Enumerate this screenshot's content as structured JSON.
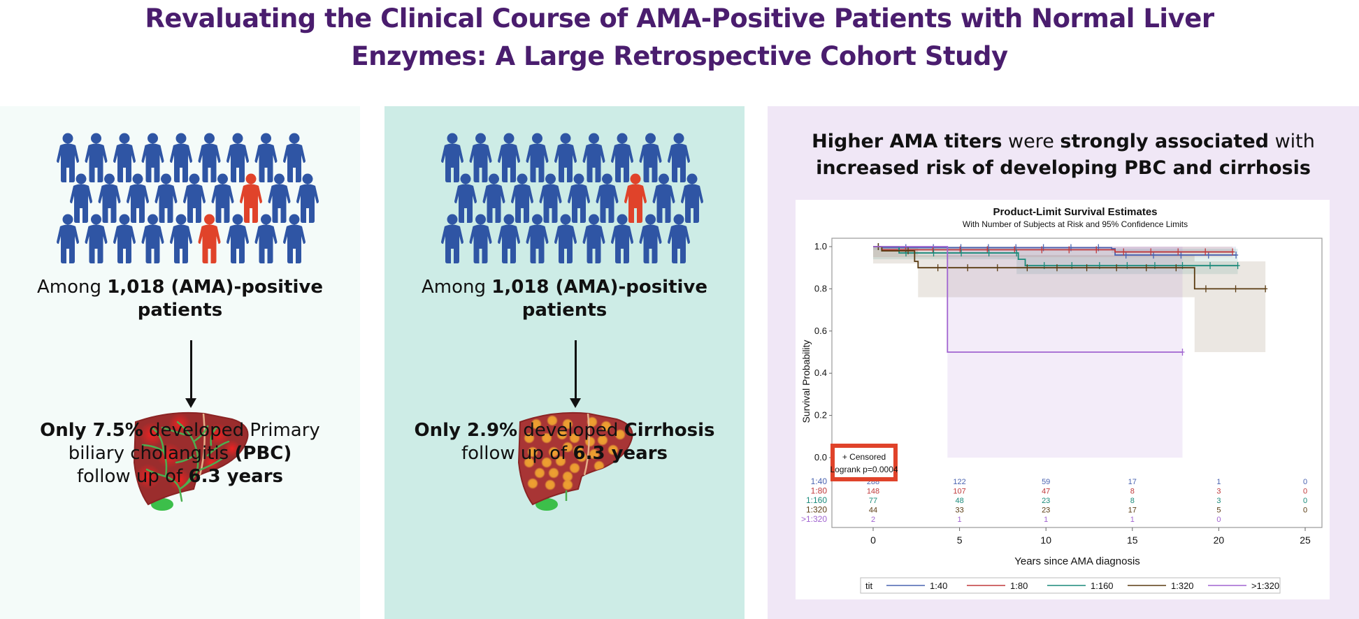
{
  "title": {
    "line1": "Revaluating the Clinical Course of AMA-Positive Patients with Normal Liver",
    "line2": "Enzymes: A Large Retrospective Cohort Study"
  },
  "colors": {
    "title": "#4a1d6e",
    "person_blue": "#2f55a4",
    "person_red": "#e0432a",
    "panel1_bg": "#f4fbf9",
    "panel2_bg": "#cdece6",
    "panel3_bg": "#f0e7f6",
    "highlight_box": "#e0432a"
  },
  "panel1": {
    "people_grid": {
      "rows": 3,
      "highlighted_count": 2,
      "total_count": 28
    },
    "cohort_text": {
      "pre": "Among ",
      "bold": "1,018 (AMA)-positive",
      "line2": "patients"
    },
    "arrow_icon": "arrow-down-icon",
    "liver_icon": "liver-pbc-icon",
    "result": {
      "bold1": "Only 7.5%",
      "text1": " developed Primary",
      "text2": "biliary cholangitis ",
      "bold2": "(PBC)",
      "text3": "follow up of ",
      "bold3": "6.3 years"
    }
  },
  "panel2": {
    "people_grid": {
      "rows": 3,
      "highlighted_count": 1,
      "total_count": 28
    },
    "cohort_text": {
      "pre": "Among ",
      "bold": "1,018 (AMA)-positive",
      "line2": "patients"
    },
    "arrow_icon": "arrow-down-icon",
    "liver_icon": "liver-cirrhosis-icon",
    "result": {
      "bold1": "Only 2.9%",
      "text1": " developed ",
      "bold2": "Cirrhosis",
      "text3": "follow up of ",
      "bold3": "6.3 years"
    }
  },
  "panel3": {
    "headline": {
      "b1": "Higher AMA titers",
      "t1": " were ",
      "b2": "strongly associated",
      "t2": " with",
      "b3": "increased risk of developing PBC and cirrhosis"
    }
  },
  "chart_data": {
    "type": "line",
    "subtype": "kaplan-meier",
    "title": "Product-Limit Survival Estimates",
    "subtitle": "With Number of Subjects at Risk and 95% Confidence Limits",
    "xlabel": "Years since AMA diagnosis",
    "ylabel": "Survival Probability",
    "xlim": [
      0,
      25
    ],
    "ylim": [
      0,
      1.0
    ],
    "xticks": [
      0,
      5,
      10,
      15,
      20,
      25
    ],
    "yticks": [
      "0.0",
      "0.2",
      "0.4",
      "0.6",
      "0.8",
      "1.0"
    ],
    "annotation": {
      "censored": "+ Censored",
      "logrank": "Logrank p=0.0004"
    },
    "legend": {
      "title": "tit",
      "position": "bottom"
    },
    "series": [
      {
        "name": "1:40",
        "color": "#4a63b0",
        "steps": [
          [
            0,
            1.0
          ],
          [
            0.5,
            0.995
          ],
          [
            13.8,
            0.99
          ],
          [
            14,
            0.96
          ],
          [
            21,
            0.96
          ]
        ],
        "ci": [
          [
            0,
            1.0,
            0.985
          ],
          [
            13.8,
            1.0,
            0.97
          ],
          [
            21,
            0.99,
            0.93
          ]
        ],
        "at_risk": [
          288,
          122,
          59,
          17,
          1,
          0
        ]
      },
      {
        "name": "1:80",
        "color": "#c0393b",
        "steps": [
          [
            0,
            1.0
          ],
          [
            0.5,
            0.985
          ],
          [
            13.8,
            0.985
          ],
          [
            14,
            0.975
          ],
          [
            20.8,
            0.975
          ]
        ],
        "ci": [
          [
            0,
            1.0,
            0.95
          ],
          [
            13.8,
            1.0,
            0.95
          ],
          [
            20.8,
            1.0,
            0.93
          ]
        ],
        "at_risk": [
          148,
          107,
          47,
          8,
          3,
          0
        ]
      },
      {
        "name": "1:160",
        "color": "#1a8a7a",
        "steps": [
          [
            0,
            1.0
          ],
          [
            1.5,
            0.97
          ],
          [
            8.3,
            0.97
          ],
          [
            8.4,
            0.94
          ],
          [
            8.8,
            0.91
          ],
          [
            21.1,
            0.91
          ]
        ],
        "ci": [
          [
            0,
            1.0,
            0.94
          ],
          [
            8.3,
            0.99,
            0.87
          ],
          [
            21.1,
            0.96,
            0.76
          ]
        ],
        "at_risk": [
          77,
          48,
          23,
          8,
          3,
          0
        ]
      },
      {
        "name": "1:320",
        "color": "#5a3b12",
        "steps": [
          [
            0,
            1.0
          ],
          [
            0.5,
            0.98
          ],
          [
            2.2,
            0.98
          ],
          [
            2.4,
            0.93
          ],
          [
            2.6,
            0.9
          ],
          [
            18.5,
            0.9
          ],
          [
            18.6,
            0.8
          ],
          [
            22.7,
            0.8
          ]
        ],
        "ci": [
          [
            0,
            1.0,
            0.92
          ],
          [
            2.6,
            0.96,
            0.76
          ],
          [
            18.6,
            0.93,
            0.5
          ],
          [
            22.7,
            0.93,
            0.5
          ]
        ],
        "at_risk": [
          44,
          33,
          23,
          17,
          5,
          0
        ]
      },
      {
        "name": ">1:320",
        "color": "#a063d0",
        "steps": [
          [
            0,
            1.0
          ],
          [
            4.3,
            1.0
          ],
          [
            4.3,
            0.5
          ],
          [
            17.9,
            0.5
          ]
        ],
        "ci": [
          [
            4.3,
            1.0,
            0.0
          ],
          [
            17.9,
            1.0,
            0.0
          ]
        ],
        "at_risk": [
          2,
          1,
          1,
          1,
          0,
          null
        ]
      }
    ]
  }
}
